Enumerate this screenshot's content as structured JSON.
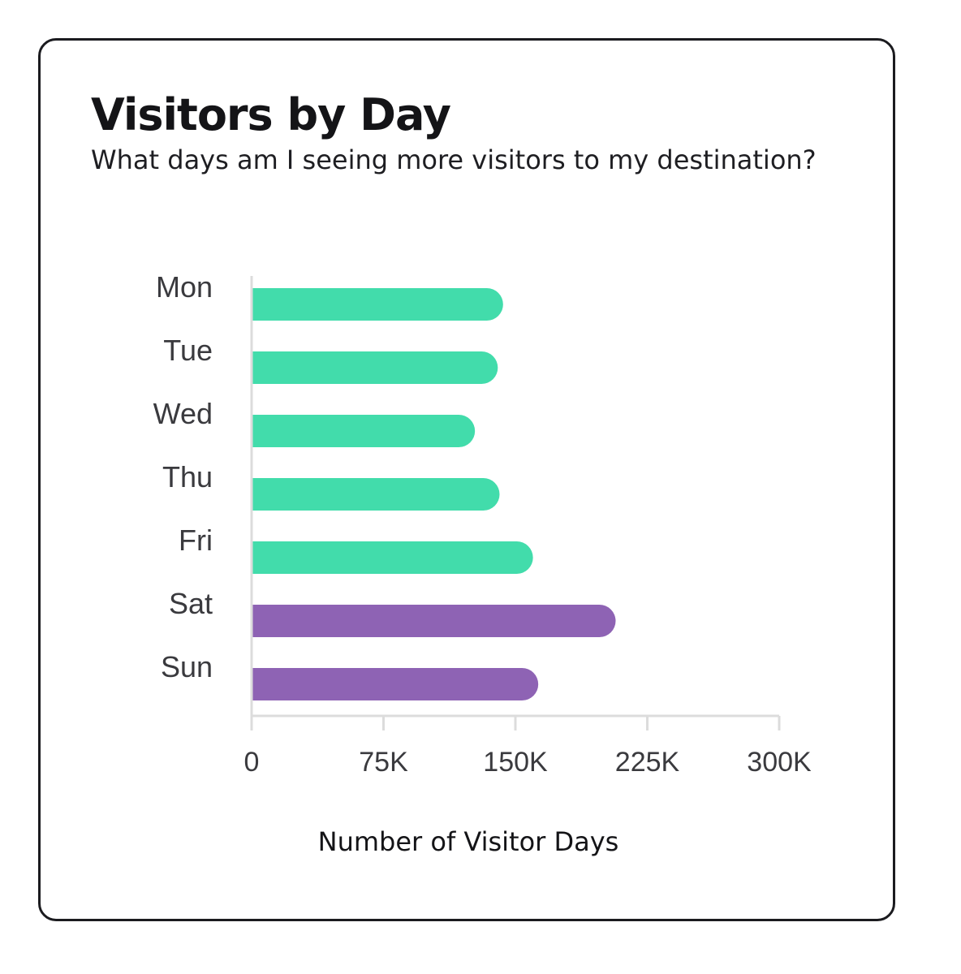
{
  "chart_data": {
    "type": "bar",
    "orientation": "horizontal",
    "title": "Visitors by Day",
    "subtitle": "What days am I seeing more visitors to my destination?",
    "xlabel": "Number of Visitor Days",
    "ylabel": "",
    "categories": [
      "Mon",
      "Tue",
      "Wed",
      "Thu",
      "Fri",
      "Sat",
      "Sun"
    ],
    "values": [
      143000,
      140000,
      127000,
      141000,
      160000,
      207000,
      163000
    ],
    "bar_colors": [
      "#42dcab",
      "#42dcab",
      "#42dcab",
      "#42dcab",
      "#42dcab",
      "#8e63b4",
      "#8e63b4"
    ],
    "xlim": [
      0,
      300000
    ],
    "x_ticks": [
      0,
      75000,
      150000,
      225000,
      300000
    ],
    "x_tick_labels": [
      "0",
      "75K",
      "150K",
      "225K",
      "300K"
    ],
    "grid": false,
    "legend": "none"
  }
}
